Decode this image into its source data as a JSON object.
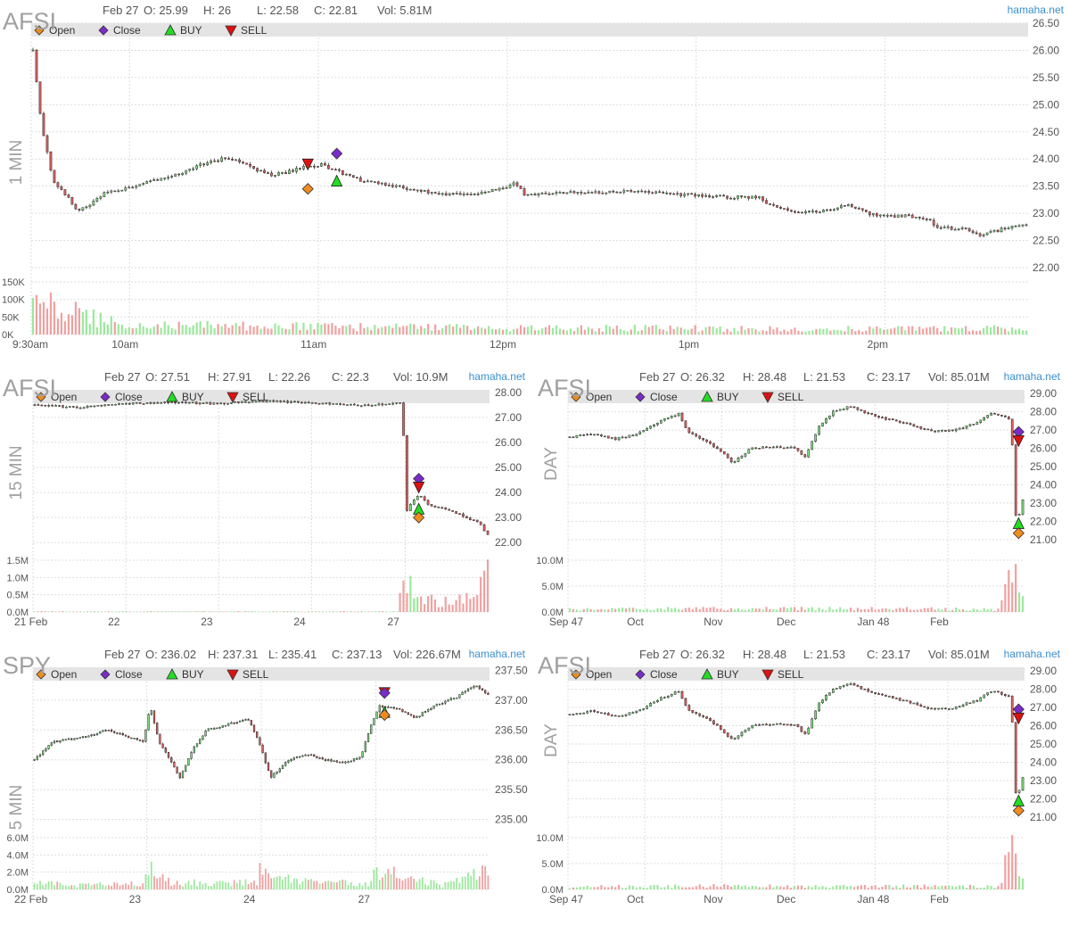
{
  "colors": {
    "up": "#7fe07f",
    "down": "#e06060",
    "volume_up": "#9be89b",
    "volume_down": "#f0a0a0",
    "grid": "#dddddd",
    "legend_bar": "#e4e4e4",
    "symbol_text": "#a0a0a0",
    "header_text": "#555555",
    "brand_text": "#3a8fd0",
    "open_marker": "#f08c1e",
    "close_marker": "#7a2bc8",
    "buy_marker": "#22dd22",
    "sell_marker": "#dd1111"
  },
  "legend": {
    "items": [
      {
        "label": "Open",
        "icon": "diamond",
        "color": "#f08c1e"
      },
      {
        "label": "Close",
        "icon": "diamond",
        "color": "#7a2bc8"
      },
      {
        "label": "BUY",
        "icon": "triangle-up",
        "color": "#22dd22"
      },
      {
        "label": "SELL",
        "icon": "triangle-down",
        "color": "#dd1111"
      }
    ]
  },
  "chart_data": [
    {
      "type": "candlestick",
      "symbol": "AFSI",
      "timeframe": "1 MIN",
      "brand": "hamaha.net",
      "header": {
        "date": "Feb 27",
        "open": "O: 25.99",
        "high": "H: 26",
        "low": "L: 22.58",
        "close": "C: 22.81",
        "volume": "Vol: 5.81M"
      },
      "y_ticks": [
        "22.00",
        "22.50",
        "23.00",
        "23.50",
        "24.00",
        "24.50",
        "25.00",
        "25.50",
        "26.00",
        "26.50"
      ],
      "ylim": [
        22.0,
        26.5
      ],
      "volume_ticks": [
        "0K",
        "50K",
        "100K",
        "150K"
      ],
      "volume_max": 150000,
      "x_ticks": [
        "9:30am",
        "10am",
        "11am",
        "12pm",
        "1pm",
        "2pm"
      ],
      "x_tick_pos": [
        0,
        0.0986,
        0.2881,
        0.4776,
        0.6671,
        0.8566
      ],
      "price_path": [
        [
          0,
          26.0
        ],
        [
          0.006,
          25.0
        ],
        [
          0.01,
          24.5
        ],
        [
          0.02,
          23.6
        ],
        [
          0.035,
          23.3
        ],
        [
          0.045,
          23.05
        ],
        [
          0.06,
          23.2
        ],
        [
          0.07,
          23.35
        ],
        [
          0.09,
          23.45
        ],
        [
          0.12,
          23.6
        ],
        [
          0.15,
          23.75
        ],
        [
          0.17,
          23.9
        ],
        [
          0.19,
          24.0
        ],
        [
          0.21,
          23.95
        ],
        [
          0.225,
          23.8
        ],
        [
          0.24,
          23.7
        ],
        [
          0.255,
          23.75
        ],
        [
          0.27,
          23.85
        ],
        [
          0.29,
          23.9
        ],
        [
          0.31,
          23.75
        ],
        [
          0.33,
          23.6
        ],
        [
          0.35,
          23.55
        ],
        [
          0.38,
          23.45
        ],
        [
          0.41,
          23.35
        ],
        [
          0.44,
          23.35
        ],
        [
          0.47,
          23.45
        ],
        [
          0.485,
          23.55
        ],
        [
          0.495,
          23.35
        ],
        [
          0.52,
          23.35
        ],
        [
          0.55,
          23.4
        ],
        [
          0.6,
          23.4
        ],
        [
          0.65,
          23.35
        ],
        [
          0.7,
          23.3
        ],
        [
          0.73,
          23.3
        ],
        [
          0.74,
          23.15
        ],
        [
          0.77,
          23.0
        ],
        [
          0.8,
          23.05
        ],
        [
          0.82,
          23.15
        ],
        [
          0.84,
          23.0
        ],
        [
          0.86,
          22.95
        ],
        [
          0.88,
          22.95
        ],
        [
          0.9,
          22.9
        ],
        [
          0.91,
          22.75
        ],
        [
          0.94,
          22.7
        ],
        [
          0.955,
          22.6
        ],
        [
          0.975,
          22.7
        ],
        [
          1.0,
          22.81
        ]
      ],
      "volume_path": [
        [
          0,
          0.55
        ],
        [
          0.02,
          0.5
        ],
        [
          0.04,
          0.4
        ],
        [
          0.08,
          0.22
        ],
        [
          0.15,
          0.17
        ],
        [
          0.3,
          0.14
        ],
        [
          0.5,
          0.12
        ],
        [
          0.7,
          0.11
        ],
        [
          0.9,
          0.1
        ],
        [
          1.0,
          0.12
        ]
      ],
      "markers": [
        {
          "kind": "sell",
          "t": 0.2775,
          "price": 23.9
        },
        {
          "kind": "open",
          "t": 0.2775,
          "price": 23.45
        },
        {
          "kind": "close",
          "t": 0.3065,
          "price": 24.1
        },
        {
          "kind": "buy",
          "t": 0.3065,
          "price": 23.6
        }
      ]
    },
    {
      "type": "candlestick",
      "symbol": "AFSI",
      "timeframe": "15 MIN",
      "brand": "hamaha.net",
      "header": {
        "date": "Feb 27",
        "open": "O: 27.51",
        "high": "H: 27.91",
        "low": "L: 22.26",
        "close": "C: 22.3",
        "volume": "Vol: 10.9M"
      },
      "y_ticks": [
        "22.00",
        "23.00",
        "24.00",
        "25.00",
        "26.00",
        "27.00",
        "28.00"
      ],
      "ylim": [
        21.9,
        28.1
      ],
      "volume_ticks": [
        "0.0M",
        "0.5M",
        "1.0M",
        "1.5M"
      ],
      "volume_max": 1500000,
      "x_ticks": [
        "21 Feb",
        "22",
        "23",
        "24",
        "27"
      ],
      "x_tick_pos": [
        0,
        0.2033,
        0.4067,
        0.6101,
        0.8154
      ],
      "price_path": [
        [
          0,
          27.5
        ],
        [
          0.1,
          27.4
        ],
        [
          0.2,
          27.55
        ],
        [
          0.3,
          27.6
        ],
        [
          0.4,
          27.55
        ],
        [
          0.5,
          27.65
        ],
        [
          0.6,
          27.6
        ],
        [
          0.7,
          27.5
        ],
        [
          0.78,
          27.5
        ],
        [
          0.808,
          27.6
        ],
        [
          0.815,
          26.0
        ],
        [
          0.82,
          23.2
        ],
        [
          0.835,
          23.7
        ],
        [
          0.85,
          23.9
        ],
        [
          0.87,
          23.5
        ],
        [
          0.9,
          23.4
        ],
        [
          0.93,
          23.2
        ],
        [
          0.96,
          22.95
        ],
        [
          0.98,
          22.8
        ],
        [
          1.0,
          22.3
        ]
      ],
      "volume_path": [
        [
          0,
          0.01
        ],
        [
          0.8,
          0.01
        ],
        [
          0.815,
          0.55
        ],
        [
          0.82,
          0.6
        ],
        [
          0.85,
          0.25
        ],
        [
          0.9,
          0.18
        ],
        [
          0.97,
          0.25
        ],
        [
          1.0,
          0.85
        ]
      ],
      "markers": [
        {
          "kind": "close",
          "t": 0.845,
          "price": 24.55
        },
        {
          "kind": "sell",
          "t": 0.845,
          "price": 24.2
        },
        {
          "kind": "buy",
          "t": 0.845,
          "price": 23.35
        },
        {
          "kind": "open",
          "t": 0.845,
          "price": 23.0
        }
      ]
    },
    {
      "type": "candlestick",
      "symbol": "AFSI",
      "timeframe": "DAY",
      "brand": "hamaha.net",
      "header": {
        "date": "Feb 27",
        "open": "O: 26.32",
        "high": "H: 28.48",
        "low": "L: 21.53",
        "close": "C: 23.17",
        "volume": "Vol: 85.01M"
      },
      "y_ticks": [
        "21.00",
        "22.00",
        "23.00",
        "24.00",
        "25.00",
        "26.00",
        "27.00",
        "28.00",
        "29.00"
      ],
      "ylim": [
        20.7,
        29.2
      ],
      "volume_ticks": [
        "0.0M",
        "5.0M",
        "10.0M"
      ],
      "volume_max": 12000000,
      "x_ticks": [
        "Sep 47",
        "Oct",
        "Nov",
        "Dec",
        "Jan 48",
        "Feb"
      ],
      "x_tick_pos": [
        0,
        0.1683,
        0.3364,
        0.4961,
        0.6726,
        0.8322
      ],
      "price_path": [
        [
          0,
          26.6
        ],
        [
          0.05,
          26.8
        ],
        [
          0.1,
          26.5
        ],
        [
          0.15,
          26.8
        ],
        [
          0.2,
          27.5
        ],
        [
          0.24,
          27.9
        ],
        [
          0.26,
          26.9
        ],
        [
          0.3,
          26.4
        ],
        [
          0.33,
          25.9
        ],
        [
          0.36,
          25.2
        ],
        [
          0.4,
          26.0
        ],
        [
          0.45,
          26.1
        ],
        [
          0.5,
          26.0
        ],
        [
          0.52,
          25.5
        ],
        [
          0.55,
          27.2
        ],
        [
          0.58,
          28.0
        ],
        [
          0.62,
          28.3
        ],
        [
          0.65,
          28.0
        ],
        [
          0.7,
          27.6
        ],
        [
          0.75,
          27.3
        ],
        [
          0.8,
          26.9
        ],
        [
          0.85,
          27.0
        ],
        [
          0.9,
          27.4
        ],
        [
          0.93,
          27.9
        ],
        [
          0.96,
          27.7
        ],
        [
          0.97,
          27.6
        ],
        [
          0.98,
          25.5
        ],
        [
          0.985,
          22.0
        ],
        [
          0.995,
          22.6
        ],
        [
          1.0,
          23.17
        ]
      ],
      "volume_path": [
        [
          0,
          0.05
        ],
        [
          0.2,
          0.06
        ],
        [
          0.4,
          0.07
        ],
        [
          0.6,
          0.06
        ],
        [
          0.8,
          0.06
        ],
        [
          0.95,
          0.05
        ],
        [
          0.975,
          0.95
        ],
        [
          0.985,
          0.55
        ],
        [
          1.0,
          0.2
        ]
      ],
      "markers": [
        {
          "kind": "close",
          "t": 0.987,
          "price": 26.9
        },
        {
          "kind": "sell",
          "t": 0.987,
          "price": 26.4
        },
        {
          "kind": "buy",
          "t": 0.987,
          "price": 21.9
        },
        {
          "kind": "open",
          "t": 0.987,
          "price": 21.35
        }
      ]
    },
    {
      "type": "candlestick",
      "symbol": "SPY",
      "timeframe": "5 MIN",
      "brand": "hamaha.net",
      "header": {
        "date": "Feb 27",
        "open": "O: 236.02",
        "high": "H: 237.31",
        "low": "L: 235.41",
        "close": "C: 237.13",
        "volume": "Vol: 226.67M"
      },
      "y_ticks": [
        "235.00",
        "235.50",
        "236.00",
        "236.50",
        "237.00",
        "237.50"
      ],
      "ylim": [
        234.95,
        237.55
      ],
      "volume_ticks": [
        "0.0M",
        "2.0M",
        "4.0M",
        "6.0M"
      ],
      "volume_max": 6000000,
      "x_ticks": [
        "22 Feb",
        "23",
        "24",
        "27"
      ],
      "x_tick_pos": [
        0,
        0.2494,
        0.5,
        0.7511
      ],
      "price_path": [
        [
          0,
          236.0
        ],
        [
          0.04,
          236.3
        ],
        [
          0.08,
          236.35
        ],
        [
          0.12,
          236.4
        ],
        [
          0.16,
          236.5
        ],
        [
          0.2,
          236.4
        ],
        [
          0.24,
          236.3
        ],
        [
          0.255,
          236.9
        ],
        [
          0.275,
          236.3
        ],
        [
          0.3,
          236.0
        ],
        [
          0.32,
          235.7
        ],
        [
          0.35,
          236.2
        ],
        [
          0.38,
          236.5
        ],
        [
          0.43,
          236.6
        ],
        [
          0.47,
          236.7
        ],
        [
          0.5,
          236.2
        ],
        [
          0.52,
          235.7
        ],
        [
          0.56,
          236.0
        ],
        [
          0.6,
          236.1
        ],
        [
          0.64,
          236.0
        ],
        [
          0.68,
          235.95
        ],
        [
          0.72,
          236.05
        ],
        [
          0.74,
          236.55
        ],
        [
          0.76,
          236.9
        ],
        [
          0.8,
          236.85
        ],
        [
          0.84,
          236.7
        ],
        [
          0.88,
          236.9
        ],
        [
          0.93,
          237.05
        ],
        [
          0.97,
          237.25
        ],
        [
          1.0,
          237.1
        ]
      ],
      "volume_path": [
        [
          0,
          0.12
        ],
        [
          0.1,
          0.08
        ],
        [
          0.24,
          0.1
        ],
        [
          0.25,
          0.55
        ],
        [
          0.26,
          0.3
        ],
        [
          0.3,
          0.12
        ],
        [
          0.49,
          0.12
        ],
        [
          0.5,
          0.45
        ],
        [
          0.52,
          0.2
        ],
        [
          0.74,
          0.1
        ],
        [
          0.75,
          0.35
        ],
        [
          0.9,
          0.08
        ],
        [
          0.99,
          0.3
        ],
        [
          1.0,
          0.5
        ]
      ],
      "markers": [
        {
          "kind": "sell",
          "t": 0.77,
          "price": 237.12
        },
        {
          "kind": "close",
          "t": 0.77,
          "price": 237.12
        },
        {
          "kind": "buy",
          "t": 0.77,
          "price": 236.8
        },
        {
          "kind": "open",
          "t": 0.77,
          "price": 236.75
        }
      ]
    },
    {
      "type": "candlestick",
      "symbol": "AFSI",
      "timeframe": "DAY",
      "brand": "hamaha.net",
      "header": {
        "date": "Feb 27",
        "open": "O: 26.32",
        "high": "H: 28.48",
        "low": "L: 21.53",
        "close": "C: 23.17",
        "volume": "Vol: 85.01M"
      },
      "y_ticks": [
        "21.00",
        "22.00",
        "23.00",
        "24.00",
        "25.00",
        "26.00",
        "27.00",
        "28.00",
        "29.00"
      ],
      "ylim": [
        20.7,
        29.2
      ],
      "volume_ticks": [
        "0.0M",
        "5.0M",
        "10.0M"
      ],
      "volume_max": 12000000,
      "x_ticks": [
        "Sep 47",
        "Oct",
        "Nov",
        "Dec",
        "Jan 48",
        "Feb"
      ],
      "x_tick_pos": [
        0,
        0.1683,
        0.3364,
        0.4961,
        0.6726,
        0.8322
      ],
      "price_path": [
        [
          0,
          26.6
        ],
        [
          0.05,
          26.8
        ],
        [
          0.1,
          26.5
        ],
        [
          0.15,
          26.8
        ],
        [
          0.2,
          27.5
        ],
        [
          0.24,
          27.9
        ],
        [
          0.26,
          26.9
        ],
        [
          0.3,
          26.4
        ],
        [
          0.33,
          25.9
        ],
        [
          0.36,
          25.2
        ],
        [
          0.4,
          26.0
        ],
        [
          0.45,
          26.1
        ],
        [
          0.5,
          26.0
        ],
        [
          0.52,
          25.5
        ],
        [
          0.55,
          27.2
        ],
        [
          0.58,
          28.0
        ],
        [
          0.62,
          28.3
        ],
        [
          0.65,
          28.0
        ],
        [
          0.7,
          27.6
        ],
        [
          0.75,
          27.3
        ],
        [
          0.8,
          26.9
        ],
        [
          0.85,
          27.0
        ],
        [
          0.9,
          27.4
        ],
        [
          0.93,
          27.9
        ],
        [
          0.96,
          27.7
        ],
        [
          0.97,
          27.6
        ],
        [
          0.98,
          25.5
        ],
        [
          0.985,
          22.0
        ],
        [
          0.995,
          22.6
        ],
        [
          1.0,
          23.17
        ]
      ],
      "volume_path": [
        [
          0,
          0.05
        ],
        [
          0.2,
          0.06
        ],
        [
          0.4,
          0.07
        ],
        [
          0.6,
          0.06
        ],
        [
          0.8,
          0.06
        ],
        [
          0.95,
          0.05
        ],
        [
          0.975,
          0.95
        ],
        [
          0.985,
          0.55
        ],
        [
          1.0,
          0.2
        ]
      ],
      "markers": [
        {
          "kind": "close",
          "t": 0.987,
          "price": 26.9
        },
        {
          "kind": "sell",
          "t": 0.987,
          "price": 26.4
        },
        {
          "kind": "buy",
          "t": 0.987,
          "price": 21.9
        },
        {
          "kind": "open",
          "t": 0.987,
          "price": 21.35
        }
      ]
    }
  ]
}
